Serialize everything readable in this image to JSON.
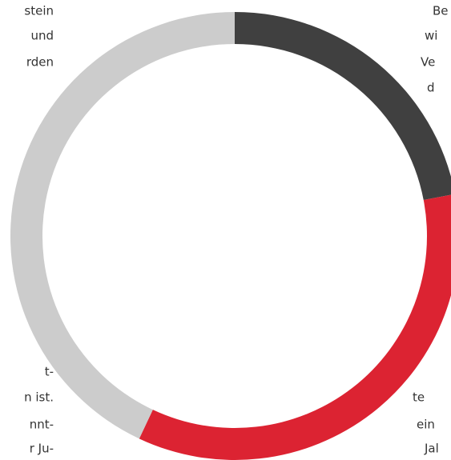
{
  "chart_data": {
    "type": "donut",
    "values": [
      22,
      35,
      43
    ],
    "colors": [
      "#404040",
      "#dc2332",
      "#cccccc"
    ]
  },
  "left_text": [
    "stein",
    "und",
    "rden",
    ".",
    "t-",
    "n ist.",
    "nnt-",
    "r Ju-"
  ],
  "right_text": [
    "Be",
    "wi",
    "Ve",
    "d",
    "te",
    "ein",
    "Jal"
  ]
}
